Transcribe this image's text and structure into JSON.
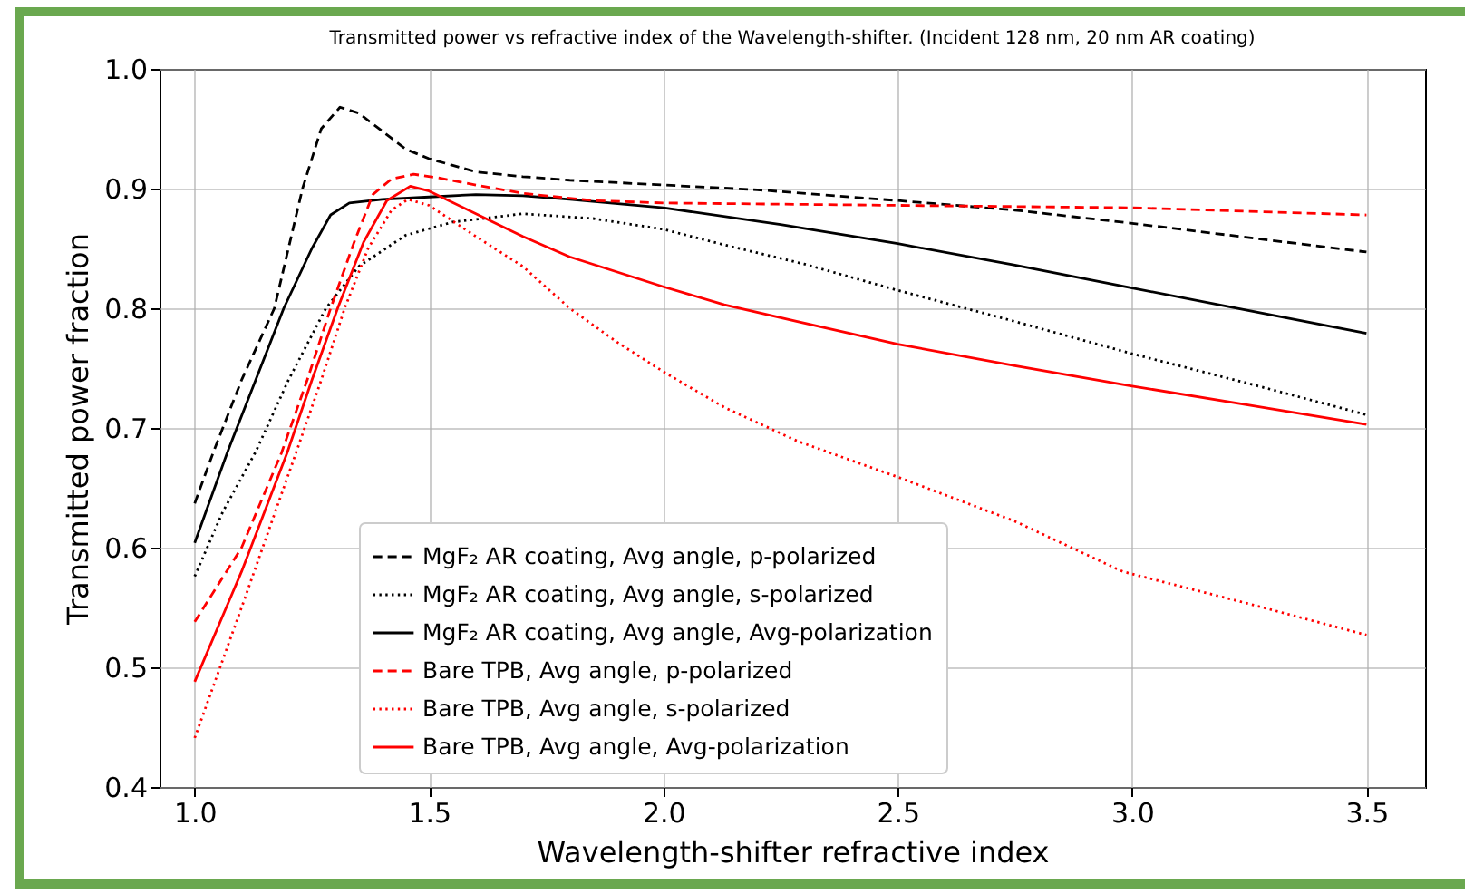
{
  "chart_data": {
    "type": "line",
    "title": "Transmitted power vs refractive index of the Wavelength-shifter. (Incident 128 nm, 20 nm AR coating)",
    "xlabel": "Wavelength-shifter refractive index",
    "ylabel": "Transmitted power fraction",
    "xlim": [
      0.925,
      3.625
    ],
    "ylim": [
      0.4,
      1.0
    ],
    "xticks": [
      {
        "value": 1,
        "label": "1.0"
      },
      1.5,
      {
        "value": 2,
        "label": "2.0"
      },
      2.5,
      {
        "value": 3,
        "label": "3.0"
      },
      3.5
    ],
    "yticks": [
      0.4,
      0.5,
      0.6,
      0.7,
      0.8,
      0.9,
      {
        "value": 1,
        "label": "1.0"
      }
    ],
    "grid": true,
    "legend": "bottom",
    "marker": "none",
    "series": [
      {
        "name": "MgF₂ AR coating, Avg angle, p-polarized",
        "color": "#000000",
        "line_style": "dashed",
        "x": [
          1.0,
          1.04,
          1.07,
          1.1,
          1.17,
          1.23,
          1.27,
          1.31,
          1.35,
          1.4,
          1.45,
          1.5,
          1.6,
          1.7,
          1.8,
          2.0,
          2.2,
          2.5,
          2.75,
          3.0,
          3.25,
          3.5
        ],
        "values": [
          0.637,
          0.68,
          0.71,
          0.74,
          0.8,
          0.9,
          0.95,
          0.968,
          0.963,
          0.948,
          0.933,
          0.925,
          0.914,
          0.91,
          0.907,
          0.903,
          0.899,
          0.89,
          0.882,
          0.871,
          0.859,
          0.847
        ]
      },
      {
        "name": "MgF₂ AR coating, Avg angle, s-polarized",
        "color": "#000000",
        "line_style": "dotted",
        "x": [
          1.0,
          1.06,
          1.13,
          1.2,
          1.28,
          1.35,
          1.45,
          1.55,
          1.7,
          1.85,
          2.0,
          2.13,
          2.3,
          2.5,
          2.75,
          3.0,
          3.25,
          3.5
        ],
        "values": [
          0.576,
          0.63,
          0.68,
          0.74,
          0.8,
          0.835,
          0.861,
          0.872,
          0.879,
          0.875,
          0.866,
          0.853,
          0.837,
          0.815,
          0.789,
          0.762,
          0.737,
          0.711
        ]
      },
      {
        "name": "MgF₂ AR coating, Avg angle, Avg-polarization",
        "color": "#000000",
        "line_style": "solid",
        "x": [
          1.0,
          1.07,
          1.13,
          1.19,
          1.25,
          1.29,
          1.33,
          1.4,
          1.5,
          1.6,
          1.7,
          1.8,
          2.0,
          2.25,
          2.5,
          2.75,
          3.0,
          3.25,
          3.5
        ],
        "values": [
          0.604,
          0.68,
          0.74,
          0.8,
          0.85,
          0.878,
          0.888,
          0.891,
          0.893,
          0.895,
          0.894,
          0.891,
          0.884,
          0.87,
          0.854,
          0.836,
          0.817,
          0.798,
          0.779
        ]
      },
      {
        "name": "Bare TPB,  Avg angle, p-polarized",
        "color": "#ff0000",
        "line_style": "dashed",
        "x": [
          1.0,
          1.1,
          1.185,
          1.24,
          1.29,
          1.34,
          1.38,
          1.42,
          1.467,
          1.52,
          1.6,
          1.7,
          1.85,
          2.0,
          2.5,
          3.0,
          3.25,
          3.5
        ],
        "values": [
          0.538,
          0.6,
          0.679,
          0.74,
          0.8,
          0.855,
          0.895,
          0.908,
          0.912,
          0.909,
          0.903,
          0.896,
          0.89,
          0.888,
          0.886,
          0.884,
          0.881,
          0.878
        ]
      },
      {
        "name": "Bare TPB,  Avg angle, s-polarized",
        "color": "#ff0000",
        "line_style": "dotted",
        "x": [
          1.0,
          1.1,
          1.216,
          1.27,
          1.32,
          1.37,
          1.42,
          1.455,
          1.5,
          1.6,
          1.7,
          1.8,
          1.9,
          2.0,
          2.131,
          2.286,
          2.5,
          2.75,
          2.98,
          3.25,
          3.5
        ],
        "values": [
          0.441,
          0.55,
          0.679,
          0.74,
          0.8,
          0.85,
          0.882,
          0.891,
          0.886,
          0.86,
          0.835,
          0.8,
          0.772,
          0.747,
          0.717,
          0.689,
          0.659,
          0.622,
          0.58,
          0.553,
          0.527
        ]
      },
      {
        "name": "Bare TPB,  Avg angle, Avg-polarization",
        "color": "#ff0000",
        "line_style": "solid",
        "x": [
          1.0,
          1.1,
          1.197,
          1.25,
          1.305,
          1.36,
          1.41,
          1.46,
          1.5,
          1.6,
          1.7,
          1.8,
          2.0,
          2.13,
          2.286,
          2.5,
          2.75,
          3.0,
          3.25,
          3.5
        ],
        "values": [
          0.488,
          0.58,
          0.679,
          0.74,
          0.8,
          0.855,
          0.89,
          0.902,
          0.898,
          0.879,
          0.86,
          0.843,
          0.818,
          0.803,
          0.789,
          0.77,
          0.752,
          0.735,
          0.719,
          0.703
        ]
      }
    ]
  }
}
